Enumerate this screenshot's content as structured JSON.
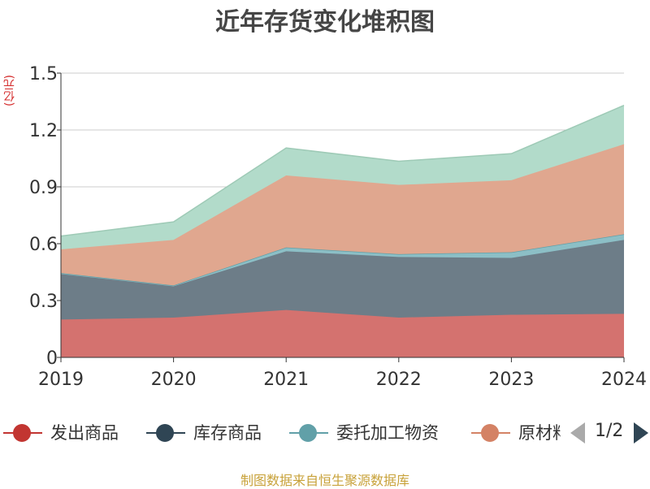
{
  "title": "近年存货变化堆积图",
  "unit_label": "(亿元)",
  "source": "制图数据来自恒生聚源数据库",
  "legend": {
    "items": [
      {
        "name": "发出商品",
        "color": "#c23531"
      },
      {
        "name": "库存商品",
        "color": "#2f4554"
      },
      {
        "name": "委托加工物资",
        "color": "#61a0a8"
      },
      {
        "name": "原材料",
        "color": "#d48265"
      }
    ],
    "page_text": "1/2"
  },
  "colors": {
    "发出商品": "#d4726f",
    "库存商品": "#6d7d88",
    "委托加工物资": "#8cbfc6",
    "原材料": "#e0a78f",
    "top_series": "#b2dbca",
    "top_series_line": "#9ecab6"
  },
  "chart_data": {
    "type": "area",
    "stacked": true,
    "x": [
      "2019",
      "2020",
      "2021",
      "2022",
      "2023",
      "2024"
    ],
    "ylim": [
      0,
      1.5
    ],
    "y_ticks": [
      "0",
      "0.3",
      "0.6",
      "0.9",
      "1.2",
      "1.5"
    ],
    "grid": true,
    "series": [
      {
        "name": "发出商品",
        "values": [
          0.2,
          0.21,
          0.25,
          0.21,
          0.225,
          0.23
        ]
      },
      {
        "name": "库存商品",
        "values": [
          0.24,
          0.165,
          0.31,
          0.32,
          0.3,
          0.39
        ]
      },
      {
        "name": "委托加工物资",
        "values": [
          0.005,
          0.005,
          0.02,
          0.015,
          0.03,
          0.03
        ]
      },
      {
        "name": "原材料",
        "values": [
          0.125,
          0.24,
          0.38,
          0.365,
          0.38,
          0.475
        ]
      },
      {
        "name": "",
        "values": [
          0.07,
          0.095,
          0.145,
          0.125,
          0.14,
          0.205
        ]
      }
    ]
  }
}
